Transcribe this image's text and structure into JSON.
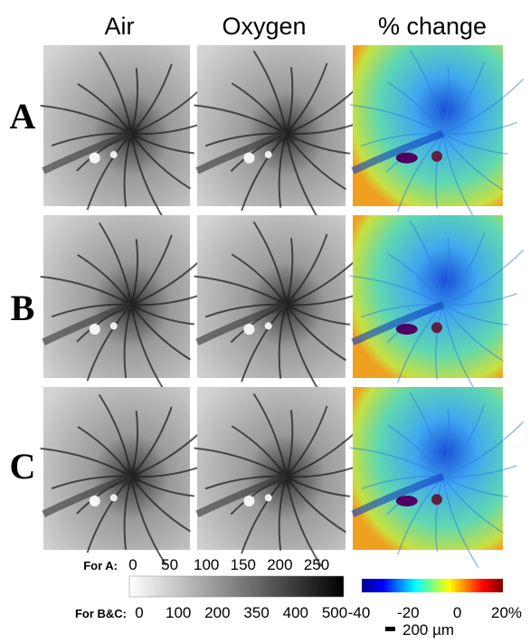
{
  "columns": [
    "Air",
    "Oxygen",
    "% change"
  ],
  "rows": [
    "A",
    "B",
    "C"
  ],
  "colorbar_gray": {
    "label_a": "For A:",
    "ticks_a": [
      "0",
      "50",
      "100",
      "150",
      "200",
      "250"
    ],
    "label_bc": "For B&C:",
    "ticks_bc": [
      "0",
      "100",
      "200",
      "350",
      "400",
      "500"
    ]
  },
  "colorbar_change": {
    "ticks": [
      "-40",
      "-20",
      "0",
      "20%"
    ]
  },
  "scale_bar": "200 µm"
}
